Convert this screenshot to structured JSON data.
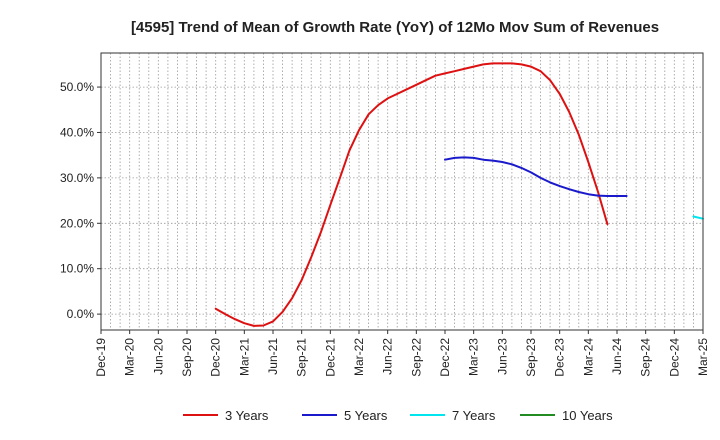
{
  "chart_data": {
    "type": "line",
    "title": "[4595]  Trend of Mean of Growth Rate (YoY) of 12Mo Mov Sum of Revenues",
    "xlabel": "",
    "ylabel": "",
    "x_ticks": [
      "Dec-19",
      "Mar-20",
      "Jun-20",
      "Sep-20",
      "Dec-20",
      "Mar-21",
      "Jun-21",
      "Sep-21",
      "Dec-21",
      "Mar-22",
      "Jun-22",
      "Sep-22",
      "Dec-22",
      "Mar-23",
      "Jun-23",
      "Sep-23",
      "Dec-23",
      "Mar-24",
      "Jun-24",
      "Sep-24",
      "Dec-24",
      "Mar-25"
    ],
    "y_ticks": [
      "0.0%",
      "10.0%",
      "20.0%",
      "30.0%",
      "40.0%",
      "50.0%"
    ],
    "y_tick_values": [
      0,
      10,
      20,
      30,
      40,
      50
    ],
    "ylim": [
      -3.5,
      57.5
    ],
    "x_index_range": [
      0,
      63
    ],
    "grid": true,
    "legend_position": "bottom",
    "series": [
      {
        "name": "3 Years",
        "color": "#dd1111",
        "start_index": 12,
        "values": [
          1.2,
          0.0,
          -1.1,
          -2.0,
          -2.6,
          -2.5,
          -1.6,
          0.5,
          3.5,
          7.5,
          12.5,
          18.0,
          24.0,
          30.0,
          36.0,
          40.5,
          44.0,
          46.0,
          47.5,
          48.5,
          49.5,
          50.5,
          51.5,
          52.5,
          53.0,
          53.5,
          54.0,
          54.5,
          55.0,
          55.2,
          55.2,
          55.2,
          55.0,
          54.5,
          53.5,
          51.5,
          48.5,
          44.5,
          39.5,
          33.5,
          27.0,
          19.8
        ]
      },
      {
        "name": "5 Years",
        "color": "#1a1acc",
        "start_index": 36,
        "values": [
          34.0,
          34.4,
          34.5,
          34.4,
          34.0,
          33.8,
          33.5,
          33.0,
          32.2,
          31.2,
          30.0,
          29.0,
          28.2,
          27.5,
          26.9,
          26.4,
          26.1,
          26.0,
          26.0,
          26.0
        ]
      },
      {
        "name": "7 Years",
        "color": "#00e5ee",
        "start_index": 62,
        "values": [
          21.5,
          21.0
        ]
      },
      {
        "name": "10 Years",
        "color": "#228b22",
        "start_index": 0,
        "values": []
      }
    ]
  }
}
